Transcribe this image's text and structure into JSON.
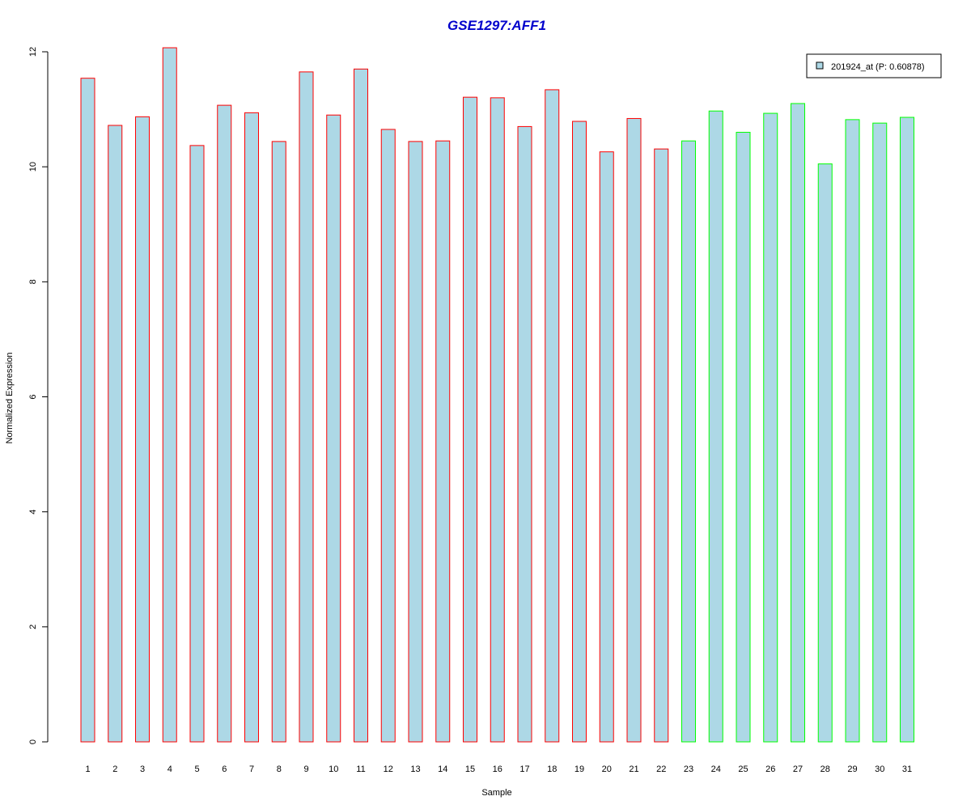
{
  "chart_data": {
    "type": "bar",
    "title": "GSE1297:AFF1",
    "xlabel": "Sample",
    "ylabel": "Normalized Expression",
    "ylim": [
      0,
      12
    ],
    "yticks": [
      0,
      2,
      4,
      6,
      8,
      10,
      12
    ],
    "categories": [
      "1",
      "2",
      "3",
      "4",
      "5",
      "6",
      "7",
      "8",
      "9",
      "10",
      "11",
      "12",
      "13",
      "14",
      "15",
      "16",
      "17",
      "18",
      "19",
      "20",
      "21",
      "22",
      "23",
      "24",
      "25",
      "26",
      "27",
      "28",
      "29",
      "30",
      "31"
    ],
    "values": [
      11.54,
      10.72,
      10.87,
      12.07,
      10.37,
      11.07,
      10.94,
      10.44,
      11.65,
      10.9,
      11.7,
      10.65,
      10.44,
      10.45,
      11.21,
      11.2,
      10.7,
      11.34,
      10.79,
      10.26,
      10.84,
      10.31,
      10.45,
      10.97,
      10.6,
      10.93,
      11.1,
      10.05,
      10.82,
      10.76,
      10.86
    ],
    "groups": [
      "A",
      "A",
      "A",
      "A",
      "A",
      "A",
      "A",
      "A",
      "A",
      "A",
      "A",
      "A",
      "A",
      "A",
      "A",
      "A",
      "A",
      "A",
      "A",
      "A",
      "A",
      "A",
      "B",
      "B",
      "B",
      "B",
      "B",
      "B",
      "B",
      "B",
      "B"
    ],
    "group_colors": {
      "A": "#ff0000",
      "B": "#00ff00"
    },
    "fill_color": "#add8e6",
    "legend": {
      "label": "201924_at (P: 0.60878)",
      "position": "top-right"
    },
    "grid": false
  }
}
